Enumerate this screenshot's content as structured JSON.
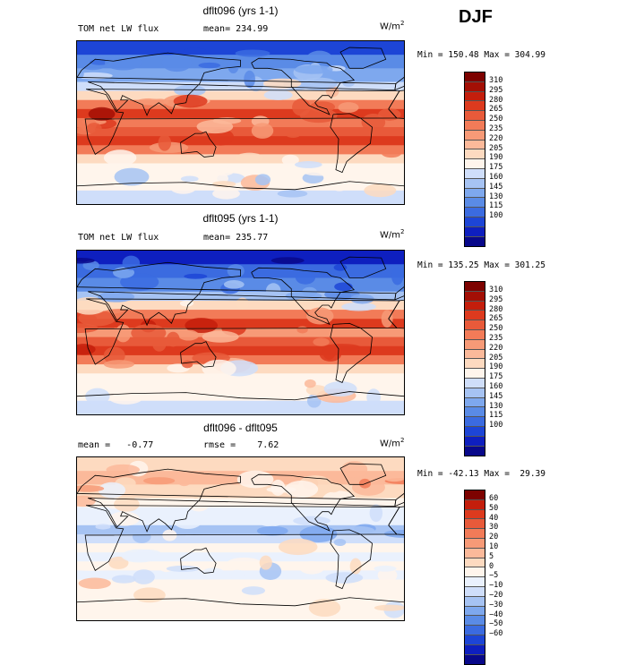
{
  "season": "DJF",
  "units": {
    "base": "W/m",
    "exp": "2"
  },
  "colors": {
    "abs_scale": [
      "#08088a",
      "#0e1fbf",
      "#1d45d6",
      "#3b6be0",
      "#5a8be6",
      "#7ea8ee",
      "#a6c3f3",
      "#cfdefa",
      "#fff5ec",
      "#fddac0",
      "#fbb99a",
      "#f79a77",
      "#f27b58",
      "#e85a3a",
      "#dd3a1e",
      "#c41e0c",
      "#a30f05",
      "#7d0200"
    ],
    "diff_scale": [
      "#08088a",
      "#0e1fbf",
      "#1d45d6",
      "#3b6be0",
      "#5a8be6",
      "#7ea8ee",
      "#a6c3f3",
      "#cfdefa",
      "#eaf1fd",
      "#fff5ec",
      "#fddac0",
      "#fbb99a",
      "#f79a77",
      "#f27b58",
      "#e85a3a",
      "#dd3a1e",
      "#c41e0c",
      "#7d0200"
    ]
  },
  "panels": [
    {
      "title": "dflt096 (yrs 1-1)",
      "field_label": "TOM net LW flux",
      "stat_text": "mean= 234.99",
      "minmax": "Min = 150.48 Max = 304.99",
      "colorbar_labels": [
        "310",
        "295",
        "280",
        "265",
        "250",
        "235",
        "220",
        "205",
        "190",
        "175",
        "160",
        "145",
        "130",
        "115",
        "100"
      ],
      "scale": "abs",
      "bands": [
        {
          "lat": 90,
          "v": 2
        },
        {
          "lat": 75,
          "v": 4
        },
        {
          "lat": 60,
          "v": 5
        },
        {
          "lat": 45,
          "v": 7
        },
        {
          "lat": 35,
          "v": 9
        },
        {
          "lat": 25,
          "v": 12
        },
        {
          "lat": 15,
          "v": 14
        },
        {
          "lat": 5,
          "v": 12
        },
        {
          "lat": -5,
          "v": 13
        },
        {
          "lat": -15,
          "v": 14
        },
        {
          "lat": -25,
          "v": 12
        },
        {
          "lat": -35,
          "v": 9
        },
        {
          "lat": -45,
          "v": 8
        },
        {
          "lat": -60,
          "v": 8
        },
        {
          "lat": -75,
          "v": 7
        }
      ]
    },
    {
      "title": "dflt095 (yrs 1-1)",
      "field_label": "TOM net LW flux",
      "stat_text": "mean= 235.77",
      "minmax": "Min = 135.25 Max = 301.25",
      "colorbar_labels": [
        "310",
        "295",
        "280",
        "265",
        "250",
        "235",
        "220",
        "205",
        "190",
        "175",
        "160",
        "145",
        "130",
        "115",
        "100"
      ],
      "scale": "abs",
      "bands": [
        {
          "lat": 90,
          "v": 1
        },
        {
          "lat": 75,
          "v": 3
        },
        {
          "lat": 60,
          "v": 4
        },
        {
          "lat": 45,
          "v": 6
        },
        {
          "lat": 35,
          "v": 9
        },
        {
          "lat": 25,
          "v": 12
        },
        {
          "lat": 15,
          "v": 14
        },
        {
          "lat": 5,
          "v": 11
        },
        {
          "lat": -5,
          "v": 13
        },
        {
          "lat": -15,
          "v": 14
        },
        {
          "lat": -25,
          "v": 12
        },
        {
          "lat": -35,
          "v": 9
        },
        {
          "lat": -45,
          "v": 8
        },
        {
          "lat": -60,
          "v": 8
        },
        {
          "lat": -75,
          "v": 7
        }
      ]
    },
    {
      "title": "dflt096 - dflt095",
      "stat_text": "mean =   -0.77",
      "stat_text2": "rmse =    7.62",
      "minmax": "Min = -42.13 Max =  29.39",
      "colorbar_labels": [
        "60",
        "50",
        "40",
        "30",
        "20",
        "10",
        "5",
        "0",
        "−5",
        "−10",
        "−20",
        "−30",
        "−40",
        "−50",
        "−60"
      ],
      "scale": "diff",
      "bands": [
        {
          "lat": 90,
          "v": 10
        },
        {
          "lat": 75,
          "v": 11
        },
        {
          "lat": 60,
          "v": 10
        },
        {
          "lat": 45,
          "v": 9
        },
        {
          "lat": 35,
          "v": 8
        },
        {
          "lat": 25,
          "v": 8
        },
        {
          "lat": 15,
          "v": 6
        },
        {
          "lat": 5,
          "v": 7
        },
        {
          "lat": -5,
          "v": 9
        },
        {
          "lat": -15,
          "v": 8
        },
        {
          "lat": -25,
          "v": 9
        },
        {
          "lat": -35,
          "v": 8
        },
        {
          "lat": -45,
          "v": 9
        },
        {
          "lat": -60,
          "v": 9
        },
        {
          "lat": -75,
          "v": 9
        }
      ]
    }
  ]
}
